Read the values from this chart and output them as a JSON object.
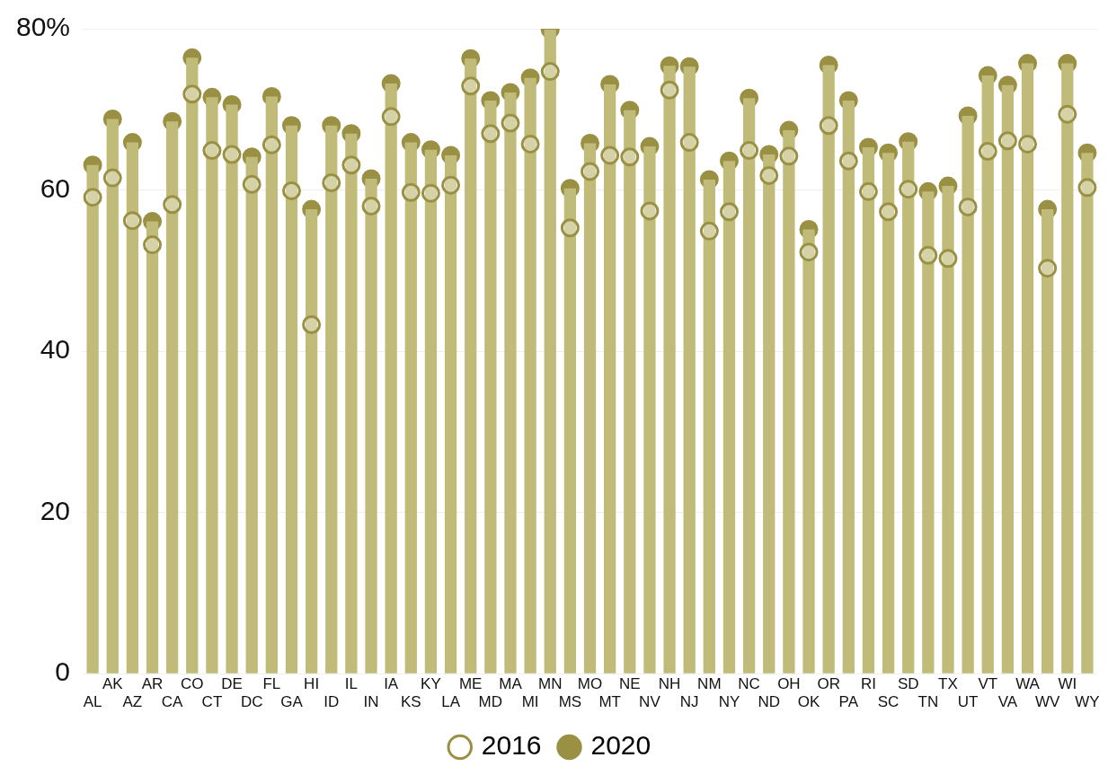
{
  "chart_data": {
    "type": "bar",
    "categories": [
      "AL",
      "AK",
      "AZ",
      "AR",
      "CA",
      "CO",
      "CT",
      "DE",
      "DC",
      "FL",
      "GA",
      "HI",
      "ID",
      "IL",
      "IN",
      "IA",
      "KS",
      "KY",
      "LA",
      "ME",
      "MD",
      "MA",
      "MI",
      "MN",
      "MS",
      "MO",
      "MT",
      "NE",
      "NV",
      "NH",
      "NJ",
      "NM",
      "NY",
      "NC",
      "ND",
      "OH",
      "OK",
      "OR",
      "PA",
      "RI",
      "SC",
      "SD",
      "TN",
      "TX",
      "UT",
      "VT",
      "VA",
      "WA",
      "WV",
      "WI",
      "WY"
    ],
    "series": [
      {
        "name": "2016",
        "type": "scatter",
        "color": "#9a9044",
        "values": [
          59.1,
          61.5,
          56.2,
          53.2,
          58.2,
          71.9,
          64.9,
          64.4,
          60.7,
          65.6,
          59.9,
          43.3,
          60.9,
          63.1,
          58.0,
          69.1,
          59.7,
          59.6,
          60.6,
          72.9,
          67.0,
          68.3,
          65.7,
          74.7,
          55.3,
          62.3,
          64.3,
          64.1,
          57.4,
          72.4,
          65.9,
          54.9,
          57.3,
          64.9,
          61.8,
          64.2,
          52.3,
          68.0,
          63.6,
          59.8,
          57.3,
          60.1,
          51.9,
          51.5,
          57.9,
          64.8,
          66.1,
          65.7,
          50.3,
          69.4,
          60.3
        ]
      },
      {
        "type": "bar",
        "color": "#c0bb78",
        "values": [
          63.1,
          68.8,
          65.9,
          56.1,
          68.5,
          76.4,
          71.5,
          70.6,
          64.1,
          71.6,
          68.0,
          57.6,
          68.0,
          67.0,
          61.4,
          73.2,
          65.9,
          65.0,
          64.3,
          76.3,
          71.1,
          72.1,
          73.9,
          79.9,
          60.2,
          65.8,
          73.1,
          69.9,
          65.4,
          75.4,
          75.3,
          61.3,
          63.6,
          71.4,
          64.4,
          67.4,
          55.1,
          75.5,
          71.1,
          65.3,
          64.6,
          66.0,
          59.8,
          60.5,
          69.2,
          74.2,
          73.0,
          75.7,
          57.6,
          75.7,
          64.6
        ]
      },
      {
        "name": "2020",
        "type": "scatter",
        "color": "#9a9044",
        "values": [
          63.1,
          68.8,
          65.9,
          56.1,
          68.5,
          76.4,
          71.5,
          70.6,
          64.1,
          71.6,
          68.0,
          57.6,
          68.0,
          67.0,
          61.4,
          73.2,
          65.9,
          65.0,
          64.3,
          76.3,
          71.1,
          72.1,
          73.9,
          79.9,
          60.2,
          65.8,
          73.1,
          69.9,
          65.4,
          75.4,
          75.3,
          61.3,
          63.6,
          71.4,
          64.4,
          67.4,
          55.1,
          75.5,
          71.1,
          65.3,
          64.6,
          66.0,
          59.8,
          60.5,
          69.2,
          74.2,
          73.0,
          75.7,
          57.6,
          75.7,
          64.6
        ]
      }
    ],
    "ylim": [
      0,
      80
    ],
    "yticks": [
      0,
      20,
      40,
      60,
      {
        "value": 80,
        "label": "80%"
      }
    ],
    "grid": "y",
    "legend": "bottom",
    "marker": "circle"
  }
}
